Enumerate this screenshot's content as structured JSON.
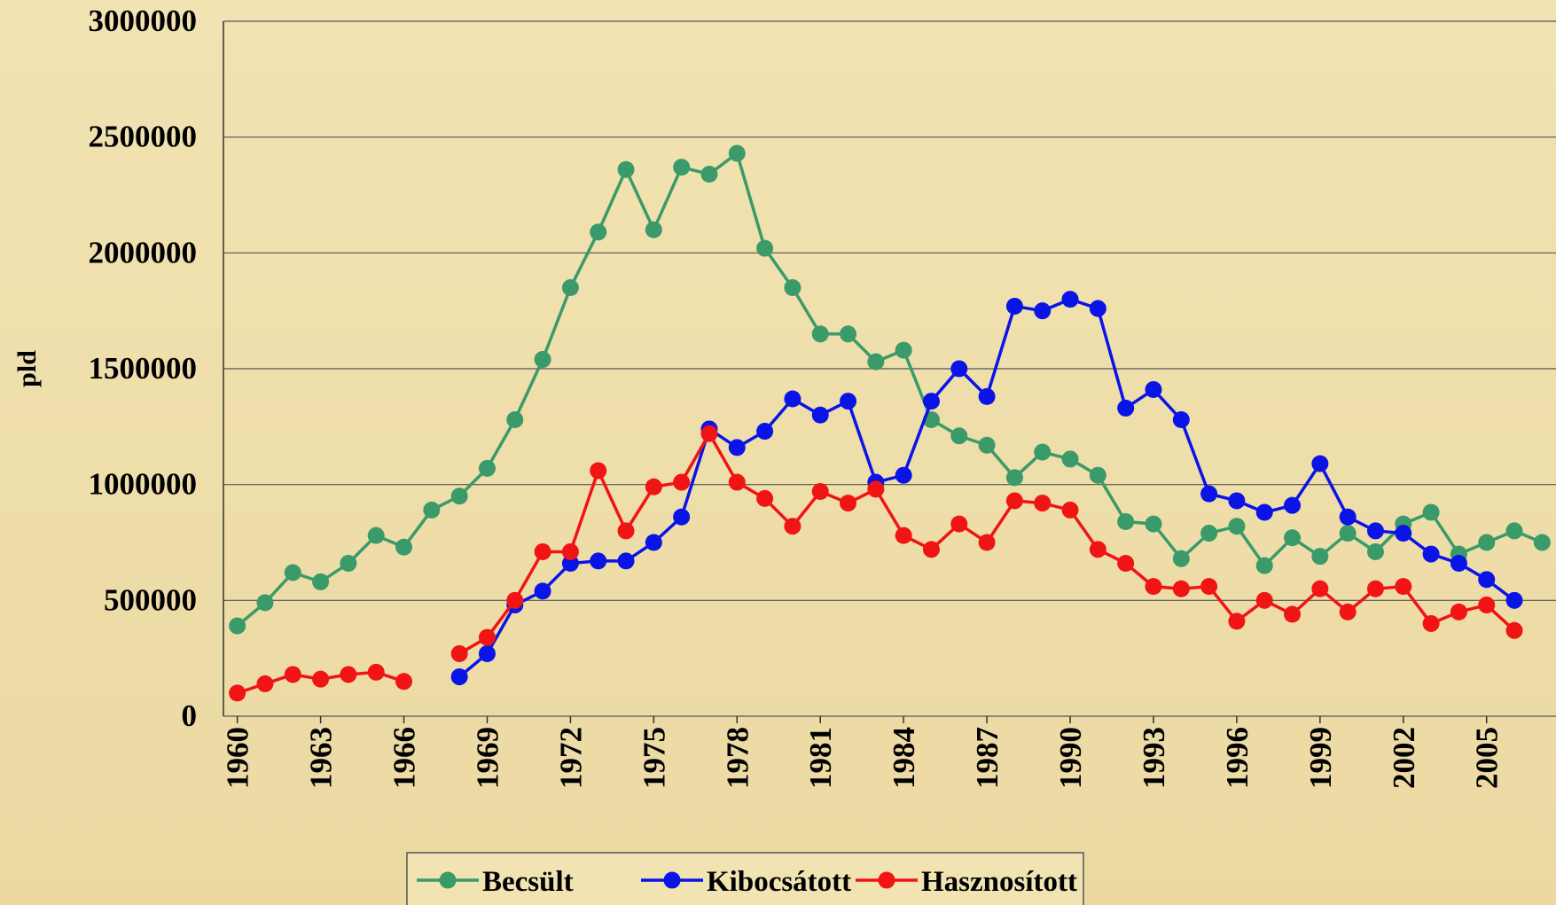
{
  "chart_data": {
    "type": "line",
    "y_label": "pld",
    "x": [
      1960,
      1961,
      1962,
      1963,
      1964,
      1965,
      1966,
      1967,
      1968,
      1969,
      1970,
      1971,
      1972,
      1973,
      1974,
      1975,
      1976,
      1977,
      1978,
      1979,
      1980,
      1981,
      1982,
      1983,
      1984,
      1985,
      1986,
      1987,
      1988,
      1989,
      1990,
      1991,
      1992,
      1993,
      1994,
      1995,
      1996,
      1997,
      1998,
      1999,
      2000,
      2001,
      2002,
      2003,
      2004,
      2005,
      2006,
      2007
    ],
    "series": [
      {
        "name": "Becsült",
        "color": "#3a9a6a",
        "values": [
          390000,
          490000,
          620000,
          580000,
          660000,
          780000,
          730000,
          890000,
          950000,
          1070000,
          1280000,
          1540000,
          1850000,
          2090000,
          2360000,
          2100000,
          2370000,
          2340000,
          2430000,
          2020000,
          1850000,
          1650000,
          1650000,
          1530000,
          1580000,
          1280000,
          1210000,
          1170000,
          1030000,
          1140000,
          1110000,
          1040000,
          840000,
          830000,
          680000,
          790000,
          820000,
          650000,
          770000,
          690000,
          790000,
          710000,
          830000,
          880000,
          700000,
          750000,
          800000,
          750000
        ]
      },
      {
        "name": "Kibocsátott",
        "color": "#0a14e6",
        "values": [
          null,
          null,
          null,
          null,
          null,
          null,
          null,
          null,
          170000,
          270000,
          480000,
          540000,
          660000,
          670000,
          670000,
          750000,
          860000,
          1240000,
          1160000,
          1230000,
          1370000,
          1300000,
          1360000,
          1010000,
          1040000,
          1360000,
          1500000,
          1380000,
          1770000,
          1750000,
          1800000,
          1760000,
          1330000,
          1410000,
          1280000,
          960000,
          930000,
          880000,
          910000,
          1090000,
          860000,
          800000,
          790000,
          700000,
          660000,
          590000,
          500000,
          null
        ]
      },
      {
        "name": "Hasznosított",
        "color": "#f01414",
        "values": [
          100000,
          140000,
          180000,
          160000,
          180000,
          190000,
          150000,
          null,
          270000,
          340000,
          500000,
          710000,
          710000,
          1060000,
          800000,
          990000,
          1010000,
          1220000,
          1010000,
          940000,
          820000,
          970000,
          920000,
          980000,
          780000,
          720000,
          830000,
          750000,
          930000,
          920000,
          890000,
          720000,
          660000,
          560000,
          550000,
          560000,
          410000,
          500000,
          440000,
          550000,
          450000,
          550000,
          560000,
          400000,
          450000,
          480000,
          370000,
          null
        ]
      }
    ],
    "xlim": [
      1959.5,
      2007.5
    ],
    "xticks": [
      1960,
      1963,
      1966,
      1969,
      1972,
      1975,
      1978,
      1981,
      1984,
      1987,
      1990,
      1993,
      1996,
      1999,
      2002,
      2005
    ],
    "ylim": [
      0,
      3000000
    ],
    "yticks": [
      0,
      500000,
      1000000,
      1500000,
      2000000,
      2500000,
      3000000
    ],
    "grid": true
  }
}
